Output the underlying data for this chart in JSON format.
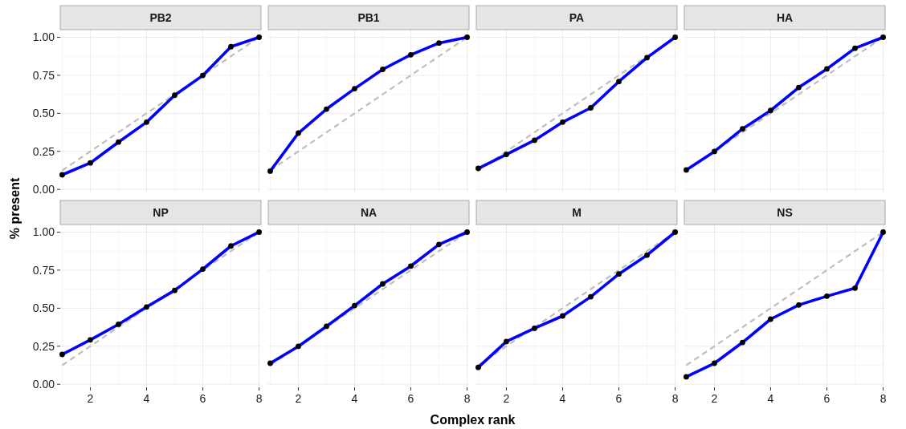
{
  "chart_data": [
    {
      "type": "line",
      "title": "PB2",
      "ylabel": "% present",
      "xlim": [
        0.93,
        8.07
      ],
      "ylim": [
        -0.02,
        1.05
      ],
      "xticks": [
        2,
        4,
        6,
        8
      ],
      "yticks": [
        {
          "value": 0,
          "label": "0.00"
        },
        {
          "value": 0.25,
          "label": "0.25"
        },
        {
          "value": 0.5,
          "label": "0.50"
        },
        {
          "value": 0.75,
          "label": "0.75"
        },
        {
          "value": 1,
          "label": "1.00"
        }
      ],
      "grid": true,
      "tick_labels": "y",
      "x": [
        1,
        2,
        3,
        4,
        5,
        6,
        7,
        8
      ],
      "series": [
        {
          "values": [
            0.125,
            0.25,
            0.375,
            0.5,
            0.625,
            0.75,
            0.875,
            1
          ],
          "color": "#bebebe",
          "line_style": "dashed"
        },
        {
          "color": "#0000ff",
          "marker": "circle",
          "values": [
            0.096,
            0.174,
            0.311,
            0.442,
            0.619,
            0.749,
            0.938,
            1.0
          ]
        }
      ]
    },
    {
      "type": "line",
      "title": "PB1",
      "xlim": [
        0.93,
        8.07
      ],
      "ylim": [
        -0.02,
        1.05
      ],
      "xticks": [
        2,
        4,
        6,
        8
      ],
      "yticks": [
        0,
        0.25,
        0.5,
        0.75,
        1
      ],
      "grid": true,
      "tick_labels": false,
      "x": [
        1,
        2,
        3,
        4,
        5,
        6,
        7,
        8
      ],
      "series": [
        {
          "values": [
            0.125,
            0.25,
            0.375,
            0.5,
            0.625,
            0.75,
            0.875,
            1
          ],
          "color": "#bebebe",
          "line_style": "dashed"
        },
        {
          "color": "#0000ff",
          "marker": "circle",
          "values": [
            0.12,
            0.37,
            0.528,
            0.662,
            0.789,
            0.885,
            0.962,
            1.0
          ]
        }
      ]
    },
    {
      "type": "line",
      "title": "PA",
      "xlim": [
        0.93,
        8.07
      ],
      "ylim": [
        -0.02,
        1.05
      ],
      "xticks": [
        2,
        4,
        6,
        8
      ],
      "yticks": [
        0,
        0.25,
        0.5,
        0.75,
        1
      ],
      "grid": true,
      "tick_labels": false,
      "x": [
        1,
        2,
        3,
        4,
        5,
        6,
        7,
        8
      ],
      "series": [
        {
          "values": [
            0.125,
            0.25,
            0.375,
            0.5,
            0.625,
            0.75,
            0.875,
            1
          ],
          "color": "#bebebe",
          "line_style": "dashed"
        },
        {
          "color": "#0000ff",
          "marker": "circle",
          "values": [
            0.138,
            0.23,
            0.323,
            0.442,
            0.536,
            0.709,
            0.866,
            1.0
          ]
        }
      ]
    },
    {
      "type": "line",
      "title": "HA",
      "xlim": [
        0.93,
        8.07
      ],
      "ylim": [
        -0.02,
        1.05
      ],
      "xticks": [
        2,
        4,
        6,
        8
      ],
      "yticks": [
        0,
        0.25,
        0.5,
        0.75,
        1
      ],
      "grid": true,
      "tick_labels": false,
      "x": [
        1,
        2,
        3,
        4,
        5,
        6,
        7,
        8
      ],
      "series": [
        {
          "values": [
            0.125,
            0.25,
            0.375,
            0.5,
            0.625,
            0.75,
            0.875,
            1
          ],
          "color": "#bebebe",
          "line_style": "dashed"
        },
        {
          "color": "#0000ff",
          "marker": "circle",
          "values": [
            0.128,
            0.249,
            0.398,
            0.519,
            0.67,
            0.792,
            0.928,
            1.0
          ]
        }
      ]
    },
    {
      "type": "line",
      "title": "NP",
      "xlim": [
        0.93,
        8.07
      ],
      "ylim": [
        -0.02,
        1.05
      ],
      "xticks": [
        2,
        4,
        6,
        8
      ],
      "yticks": [
        {
          "value": 0,
          "label": "0.00"
        },
        {
          "value": 0.25,
          "label": "0.25"
        },
        {
          "value": 0.5,
          "label": "0.50"
        },
        {
          "value": 0.75,
          "label": "0.75"
        },
        {
          "value": 1,
          "label": "1.00"
        }
      ],
      "grid": true,
      "x": [
        1,
        2,
        3,
        4,
        5,
        6,
        7,
        8
      ],
      "series": [
        {
          "values": [
            0.125,
            0.25,
            0.375,
            0.5,
            0.625,
            0.75,
            0.875,
            1
          ],
          "color": "#bebebe",
          "line_style": "dashed"
        },
        {
          "color": "#0000ff",
          "marker": "circle",
          "values": [
            0.196,
            0.292,
            0.394,
            0.508,
            0.617,
            0.757,
            0.909,
            1.0
          ]
        }
      ]
    },
    {
      "type": "line",
      "title": "NA",
      "xlabel": "Complex rank",
      "xlim": [
        0.93,
        8.07
      ],
      "ylim": [
        -0.02,
        1.05
      ],
      "xticks": [
        2,
        4,
        6,
        8
      ],
      "yticks": [
        0,
        0.25,
        0.5,
        0.75,
        1
      ],
      "grid": true,
      "tick_labels": "x",
      "x": [
        1,
        2,
        3,
        4,
        5,
        6,
        7,
        8
      ],
      "series": [
        {
          "values": [
            0.125,
            0.25,
            0.375,
            0.5,
            0.625,
            0.75,
            0.875,
            1
          ],
          "color": "#bebebe",
          "line_style": "dashed"
        },
        {
          "color": "#0000ff",
          "marker": "circle",
          "values": [
            0.138,
            0.249,
            0.381,
            0.517,
            0.66,
            0.777,
            0.919,
            1.0
          ]
        }
      ]
    },
    {
      "type": "line",
      "title": "M",
      "xlim": [
        0.93,
        8.07
      ],
      "ylim": [
        -0.02,
        1.05
      ],
      "xticks": [
        2,
        4,
        6,
        8
      ],
      "yticks": [
        0,
        0.25,
        0.5,
        0.75,
        1
      ],
      "grid": true,
      "tick_labels": "x",
      "x": [
        1,
        2,
        3,
        4,
        5,
        6,
        7,
        8
      ],
      "series": [
        {
          "values": [
            0.125,
            0.25,
            0.375,
            0.5,
            0.625,
            0.75,
            0.875,
            1
          ],
          "color": "#bebebe",
          "line_style": "dashed"
        },
        {
          "color": "#0000ff",
          "marker": "circle",
          "values": [
            0.111,
            0.281,
            0.368,
            0.449,
            0.575,
            0.725,
            0.849,
            1.0
          ]
        }
      ]
    },
    {
      "type": "line",
      "title": "NS",
      "xlim": [
        0.93,
        8.07
      ],
      "ylim": [
        -0.02,
        1.05
      ],
      "xticks": [
        2,
        4,
        6,
        8
      ],
      "yticks": [
        0,
        0.25,
        0.5,
        0.75,
        1
      ],
      "grid": true,
      "tick_labels": "x",
      "x": [
        1,
        2,
        3,
        4,
        5,
        6,
        7,
        8
      ],
      "series": [
        {
          "values": [
            0.125,
            0.25,
            0.375,
            0.5,
            0.625,
            0.75,
            0.875,
            1
          ],
          "color": "#bebebe",
          "line_style": "dashed"
        },
        {
          "color": "#0000ff",
          "marker": "circle",
          "values": [
            0.049,
            0.138,
            0.275,
            0.428,
            0.521,
            0.579,
            0.632,
            1.0
          ]
        }
      ]
    }
  ]
}
